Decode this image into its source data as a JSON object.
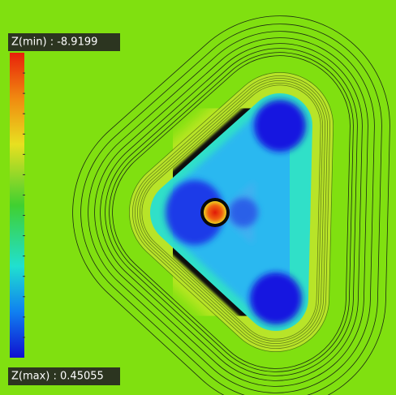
{
  "colorbar": {
    "min_label": "Z(min) : -8.9199",
    "max_label": "Z(max) : 0.45055"
  }
}
